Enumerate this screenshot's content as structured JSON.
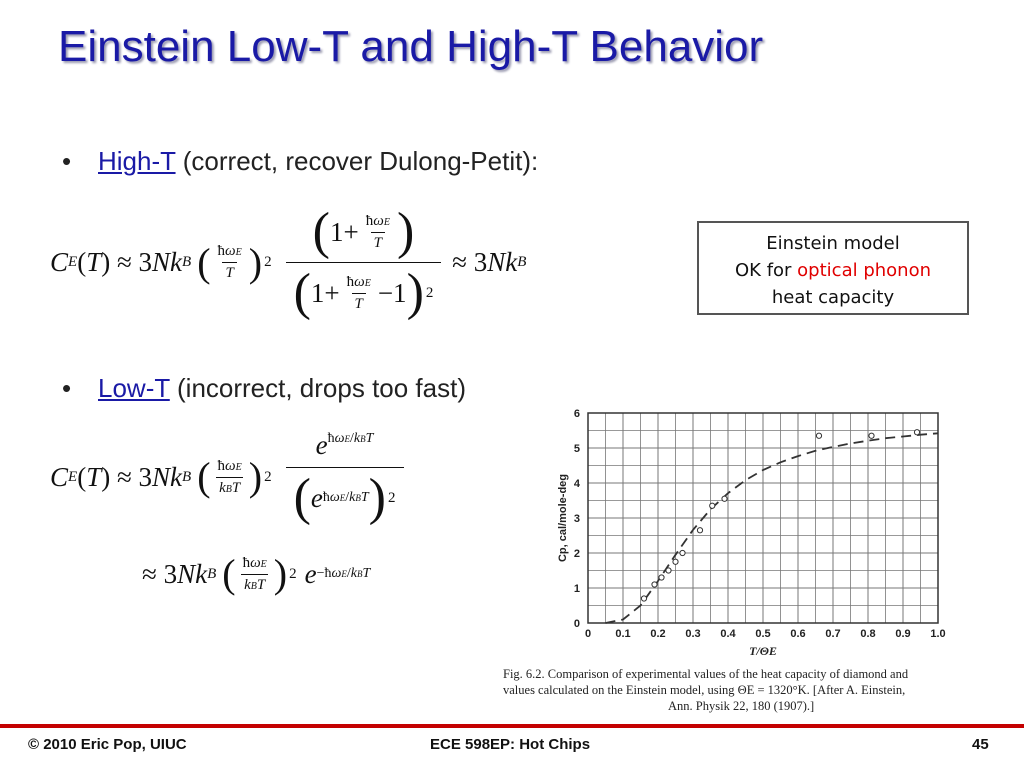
{
  "title": "Einstein Low-T and High-T Behavior",
  "bullets": [
    {
      "link": "High-T",
      "rest": " (correct, recover Dulong-Petit):"
    },
    {
      "link": "Low-T",
      "rest": " (incorrect, drops too fast)"
    }
  ],
  "note_box": {
    "line1": "Einstein model",
    "line2_prefix": "OK for ",
    "line2_highlight": "optical phonon",
    "line3": "heat capacity",
    "highlight_color": "#e00000"
  },
  "chart_data": {
    "type": "scatter",
    "xlabel": "T/ΘE",
    "ylabel": "Cp, cal/mole-deg",
    "xlim": [
      0,
      1.0
    ],
    "ylim": [
      0,
      6
    ],
    "x_ticks": [
      "0",
      "0.1",
      "0.2",
      "0.3",
      "0.4",
      "0.5",
      "0.6",
      "0.7",
      "0.8",
      "0.9",
      "1.0"
    ],
    "y_ticks": [
      "0",
      "1",
      "2",
      "3",
      "4",
      "5",
      "6"
    ],
    "grid": true,
    "series": [
      {
        "kind": "line-dashed",
        "x": [
          0.05,
          0.1,
          0.15,
          0.2,
          0.25,
          0.3,
          0.35,
          0.4,
          0.45,
          0.5,
          0.55,
          0.6,
          0.65,
          0.7,
          0.75,
          0.8,
          0.85,
          0.9,
          0.95,
          1.0
        ],
        "y": [
          0.0,
          0.1,
          0.5,
          1.2,
          1.95,
          2.66,
          3.25,
          3.71,
          4.08,
          4.37,
          4.59,
          4.77,
          4.92,
          5.03,
          5.13,
          5.21,
          5.28,
          5.33,
          5.38,
          5.42
        ]
      },
      {
        "kind": "points",
        "x": [
          0.16,
          0.19,
          0.21,
          0.23,
          0.25,
          0.27,
          0.32,
          0.355,
          0.39,
          0.66,
          0.81,
          0.94
        ],
        "y": [
          0.7,
          1.1,
          1.3,
          1.5,
          1.75,
          2.0,
          2.65,
          3.35,
          3.55,
          5.35,
          5.35,
          5.45
        ]
      }
    ]
  },
  "caption": {
    "line1": "Fig. 6.2.   Comparison of experimental values of the heat capacity of diamond and",
    "line2": "values calculated on the Einstein model, using ΘE = 1320°K.   [After A. Einstein,",
    "line3": "Ann. Physik 22, 180 (1907).]"
  },
  "footer": {
    "left": "© 2010 Eric Pop, UIUC",
    "center": "ECE 598EP: Hot Chips",
    "right": "45"
  }
}
